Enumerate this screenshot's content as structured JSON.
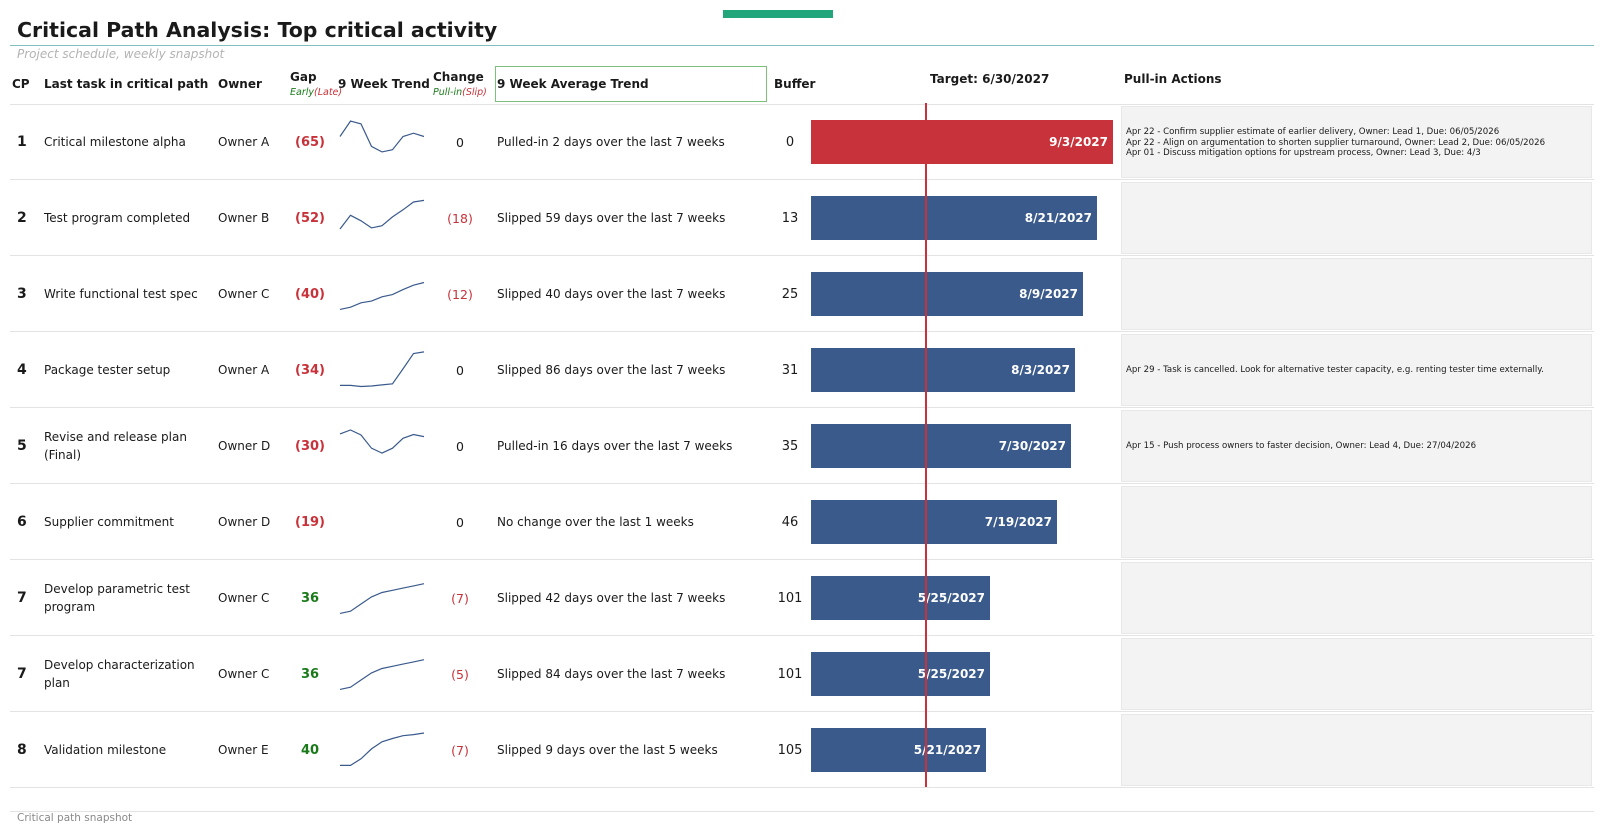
{
  "header": {
    "title": "Critical Path Analysis: Top critical activity",
    "subtitle": "Project schedule, weekly snapshot"
  },
  "columns": {
    "cp": "CP",
    "task": "Last task in critical path",
    "owner": "Owner",
    "gap": "Gap",
    "gap_early": "Early",
    "gap_late": "(Late)",
    "trend": "9 Week Trend",
    "change": "Change",
    "change_pull": "Pull-in",
    "change_slip": "(Slip)",
    "avg_trend": "9 Week Average Trend",
    "buffer": "Buffer",
    "target": "Target: 6/30/2027",
    "actions": "Pull-in Actions"
  },
  "colors": {
    "critical": "#c8323a",
    "bar": "#3a5a8c",
    "early": "#1a7a1a",
    "late": "#c8323a",
    "accent": "#20a67a",
    "sparkline": "#3a5a8c"
  },
  "chart_data": {
    "type": "bar",
    "orientation": "horizontal",
    "target_date": "6/30/2027",
    "x_scale": "date",
    "bar_start_date": "12/28/2026",
    "series": [
      {
        "name": "Finish date",
        "values": [
          "9/3/2027",
          "8/21/2027",
          "8/9/2027",
          "8/3/2027",
          "7/30/2027",
          "7/19/2027",
          "5/25/2027",
          "5/25/2027",
          "5/21/2027"
        ]
      }
    ]
  },
  "rows": [
    {
      "cp": "1",
      "task": "Critical milestone alpha",
      "owner": "Owner A",
      "gap": "(65)",
      "gap_status": "late",
      "trend": [
        5,
        7.8,
        7.3,
        3.2,
        2.2,
        2.6,
        5,
        5.6,
        5
      ],
      "change": "0",
      "change_status": "neutral",
      "avg_text": "Pulled-in 2 days over the last 7 weeks",
      "buffer": "0",
      "finish": "9/3/2027",
      "critical": true,
      "actions": [
        "Apr 22 - Confirm supplier estimate of earlier delivery, Owner: Lead 1, Due: 06/05/2026",
        "Apr 22 - Align on argumentation to shorten supplier turnaround, Owner: Lead 2, Due: 06/05/2026",
        "Apr 01 - Discuss mitigation options for upstream process, Owner: Lead 3, Due: 4/3"
      ],
      "actions_align": "top"
    },
    {
      "cp": "2",
      "task": "Test program completed",
      "owner": "Owner B",
      "gap": "(52)",
      "gap_status": "late",
      "trend": [
        2,
        4.5,
        3.5,
        2.2,
        2.6,
        4.2,
        5.5,
        6.9,
        7.2
      ],
      "change": "(18)",
      "change_status": "slip",
      "avg_text": "Slipped 59 days over the last 7 weeks",
      "buffer": "13",
      "finish": "8/21/2027",
      "critical": false,
      "actions": [],
      "actions_align": "center"
    },
    {
      "cp": "3",
      "task": "Write functional test spec",
      "owner": "Owner C",
      "gap": "(40)",
      "gap_status": "late",
      "trend": [
        1.2,
        1.6,
        2.4,
        2.7,
        3.5,
        3.9,
        4.8,
        5.6,
        6.1
      ],
      "change": "(12)",
      "change_status": "slip",
      "avg_text": "Slipped 40 days over the last 7 weeks",
      "buffer": "25",
      "finish": "8/9/2027",
      "critical": false,
      "actions": [],
      "actions_align": "center"
    },
    {
      "cp": "4",
      "task": "Package tester setup",
      "owner": "Owner A",
      "gap": "(34)",
      "gap_status": "late",
      "trend": [
        1.2,
        1.2,
        1,
        1.1,
        1.3,
        1.5,
        4.2,
        7,
        7.3
      ],
      "change": "0",
      "change_status": "neutral",
      "avg_text": "Slipped 86 days over the last 7 weeks",
      "buffer": "31",
      "finish": "8/3/2027",
      "critical": false,
      "actions": [
        "Apr 29 - Task is cancelled. Look for alternative tester capacity, e.g. renting tester time externally."
      ],
      "actions_align": "center"
    },
    {
      "cp": "5",
      "task": "Revise and release plan (Final)",
      "owner": "Owner D",
      "gap": "(30)",
      "gap_status": "late",
      "trend": [
        6.2,
        6.9,
        6,
        3.6,
        2.7,
        3.6,
        5.4,
        6.1,
        5.7
      ],
      "change": "0",
      "change_status": "neutral",
      "avg_text": "Pulled-in 16 days over the last 7 weeks",
      "buffer": "35",
      "finish": "7/30/2027",
      "critical": false,
      "actions": [
        "Apr 15 - Push process owners to faster decision, Owner: Lead 4, Due: 27/04/2026"
      ],
      "actions_align": "center"
    },
    {
      "cp": "6",
      "task": "Supplier commitment",
      "owner": "Owner D",
      "gap": "(19)",
      "gap_status": "late",
      "trend": [],
      "change": "0",
      "change_status": "neutral",
      "avg_text": "No change over the last 1 weeks",
      "buffer": "46",
      "finish": "7/19/2027",
      "critical": false,
      "actions": [],
      "actions_align": "center"
    },
    {
      "cp": "7",
      "task": "Develop parametric test program",
      "owner": "Owner C",
      "gap": "36",
      "gap_status": "early",
      "trend": [
        1.2,
        1.6,
        2.9,
        4.2,
        5,
        5.4,
        5.8,
        6.2,
        6.6
      ],
      "change": "(7)",
      "change_status": "slip",
      "avg_text": "Slipped 42 days over the last 7 weeks",
      "buffer": "101",
      "finish": "5/25/2027",
      "critical": false,
      "actions": [],
      "actions_align": "center"
    },
    {
      "cp": "7",
      "task": "Develop characterization plan",
      "owner": "Owner C",
      "gap": "36",
      "gap_status": "early",
      "trend": [
        1.2,
        1.6,
        2.9,
        4.2,
        5,
        5.4,
        5.8,
        6.2,
        6.6
      ],
      "change": "(5)",
      "change_status": "slip",
      "avg_text": "Slipped 84 days over the last 7 weeks",
      "buffer": "101",
      "finish": "5/25/2027",
      "critical": false,
      "actions": [],
      "actions_align": "center"
    },
    {
      "cp": "8",
      "task": "Validation milestone",
      "owner": "Owner E",
      "gap": "40",
      "gap_status": "early",
      "trend": [
        1.2,
        1.2,
        2.4,
        4.2,
        5.5,
        6.1,
        6.6,
        6.8,
        7.1
      ],
      "change": "(7)",
      "change_status": "slip",
      "avg_text": "Slipped 9 days over the last 5 weeks",
      "buffer": "105",
      "finish": "5/21/2027",
      "critical": false,
      "actions": [],
      "actions_align": "center"
    }
  ],
  "footer": {
    "note": "Critical path snapshot"
  }
}
